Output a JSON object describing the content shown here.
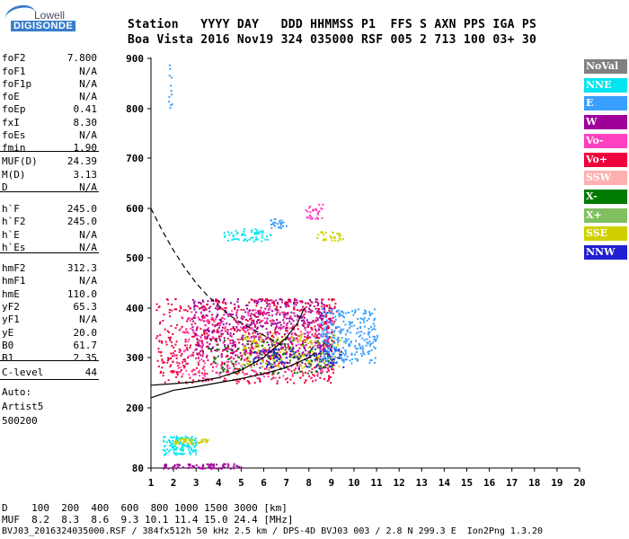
{
  "logo": {
    "line1": "Lowell",
    "line2": "DIGISONDE"
  },
  "header": {
    "line1": "Station   YYYY DAY   DDD HHMMSS P1  FFS S AXN PPS IGA PS",
    "line2": "Boa Vista 2016 Nov19 324 035000 RSF 005 2 713 100 03+ 30"
  },
  "params": [
    {
      "label": "foF2",
      "value": "7.800"
    },
    {
      "label": "foF1",
      "value": "N/A"
    },
    {
      "label": "foF1p",
      "value": "N/A"
    },
    {
      "label": "foE",
      "value": "N/A"
    },
    {
      "label": "foEp",
      "value": "0.41"
    },
    {
      "label": "fxI",
      "value": "8.30"
    },
    {
      "label": "foEs",
      "value": "N/A"
    },
    {
      "label": "fmin",
      "value": "1.90"
    },
    {
      "label": "MUF(D)",
      "value": "24.39"
    },
    {
      "label": "M(D)",
      "value": "3.13"
    },
    {
      "label": "D",
      "value": "N/A"
    },
    {
      "label": "h`F",
      "value": "245.0"
    },
    {
      "label": "h`F2",
      "value": "245.0"
    },
    {
      "label": "h`E",
      "value": "N/A"
    },
    {
      "label": "h`Es",
      "value": "N/A"
    },
    {
      "label": "hmF2",
      "value": "312.3"
    },
    {
      "label": "hmF1",
      "value": "N/A"
    },
    {
      "label": "hmE",
      "value": "110.0"
    },
    {
      "label": "yF2",
      "value": "65.3"
    },
    {
      "label": "yF1",
      "value": "N/A"
    },
    {
      "label": "yE",
      "value": "20.0"
    },
    {
      "label": "B0",
      "value": "61.7"
    },
    {
      "label": "B1",
      "value": "2.35"
    },
    {
      "label": "C-level",
      "value": "44"
    }
  ],
  "autoscaling": {
    "line1": "Auto:",
    "line2": "Artist5",
    "line3": "500200"
  },
  "legend": [
    {
      "label": "NoVal",
      "color": "#808080"
    },
    {
      "label": "NNE",
      "color": "#00e5f0"
    },
    {
      "label": "E",
      "color": "#3aa0ff"
    },
    {
      "label": "W",
      "color": "#a0009a"
    },
    {
      "label": "Vo-",
      "color": "#ff40c0"
    },
    {
      "label": "Vo+",
      "color": "#f0003c"
    },
    {
      "label": "SSW",
      "color": "#ffb0b0"
    },
    {
      "label": "X-",
      "color": "#007a00"
    },
    {
      "label": "X+",
      "color": "#80c060"
    },
    {
      "label": "SSE",
      "color": "#d0d000"
    },
    {
      "label": "NNW",
      "color": "#2020d0"
    }
  ],
  "bottom": {
    "d_line": "D    100  200  400  600  800 1000 1500 3000 [km]",
    "muf_line": "MUF  8.2  8.3  8.6  9.3 10.1 11.4 15.0 24.4 [MHz]",
    "footer": "BVJ03_2016324035000.RSF / 384fx512h 50 kHz 2.5 km / DPS-4D BVJ03 003 / 2.8 N 299.3 E  Ion2Png 1.3.20"
  },
  "chart_data": {
    "type": "scatter",
    "xlim": [
      1,
      20
    ],
    "ylim": [
      80,
      900
    ],
    "xticks": [
      1,
      2,
      3,
      4,
      5,
      6,
      7,
      8,
      9,
      10,
      11,
      12,
      13,
      14,
      15,
      16,
      17,
      18,
      19,
      20
    ],
    "yticks": [
      80,
      200,
      300,
      400,
      500,
      600,
      700,
      800,
      900
    ],
    "grid": false,
    "legend_position": "right",
    "traces": [
      {
        "name": "O-trace",
        "style": "solid-black",
        "x": [
          1.0,
          2.0,
          3.0,
          4.0,
          5.0,
          6.0,
          7.0,
          7.5,
          7.8
        ],
        "y": [
          245,
          248,
          252,
          260,
          275,
          300,
          340,
          370,
          400
        ]
      },
      {
        "name": "X-trace",
        "style": "solid-black",
        "x": [
          1.0,
          2.0,
          3.0,
          4.0,
          5.0,
          6.0,
          7.0,
          8.0,
          8.3
        ],
        "y": [
          220,
          235,
          242,
          250,
          258,
          268,
          280,
          300,
          310
        ]
      },
      {
        "name": "profile",
        "style": "dashed-black",
        "x": [
          1.0,
          1.5,
          2.0,
          2.5,
          3.0,
          3.5,
          4.0,
          4.5,
          5.0,
          6.0,
          7.0
        ],
        "y": [
          600,
          555,
          515,
          480,
          450,
          425,
          405,
          385,
          370,
          345,
          320
        ]
      }
    ],
    "clusters": [
      {
        "color": "#00e5f0",
        "x": [
          4.2,
          6.3
        ],
        "y": [
          535,
          560
        ],
        "n": 60
      },
      {
        "color": "#3aa0ff",
        "x": [
          6.2,
          7.0
        ],
        "y": [
          560,
          580
        ],
        "n": 25
      },
      {
        "color": "#ff40c0",
        "x": [
          7.8,
          8.6
        ],
        "y": [
          580,
          610
        ],
        "n": 30
      },
      {
        "color": "#d0d000",
        "x": [
          8.3,
          9.6
        ],
        "y": [
          535,
          555
        ],
        "n": 30
      },
      {
        "color": "#a0009a",
        "x": [
          2.8,
          9.0
        ],
        "y": [
          300,
          420
        ],
        "n": 600
      },
      {
        "color": "#f0003c",
        "x": [
          1.2,
          9.2
        ],
        "y": [
          250,
          420
        ],
        "n": 700
      },
      {
        "color": "#ff40c0",
        "x": [
          2.0,
          9.0
        ],
        "y": [
          260,
          400
        ],
        "n": 250
      },
      {
        "color": "#007a00",
        "x": [
          3.5,
          9.0
        ],
        "y": [
          270,
          340
        ],
        "n": 150
      },
      {
        "color": "#d0d000",
        "x": [
          5.0,
          9.4
        ],
        "y": [
          280,
          350
        ],
        "n": 150
      },
      {
        "color": "#2020d0",
        "x": [
          5.5,
          9.5
        ],
        "y": [
          280,
          320
        ],
        "n": 120
      },
      {
        "color": "#3aa0ff",
        "x": [
          8.5,
          11.0
        ],
        "y": [
          290,
          400
        ],
        "n": 260
      },
      {
        "color": "#3aa0ff",
        "x": [
          1.75,
          1.9
        ],
        "y": [
          800,
          890
        ],
        "n": 12
      },
      {
        "color": "#00e5f0",
        "x": [
          1.5,
          3.0
        ],
        "y": [
          108,
          145
        ],
        "n": 120
      },
      {
        "color": "#d0d000",
        "x": [
          2.0,
          3.6
        ],
        "y": [
          130,
          140
        ],
        "n": 40
      },
      {
        "color": "#a0009a",
        "x": [
          1.5,
          5.0
        ],
        "y": [
          80,
          90
        ],
        "n": 80
      }
    ]
  }
}
